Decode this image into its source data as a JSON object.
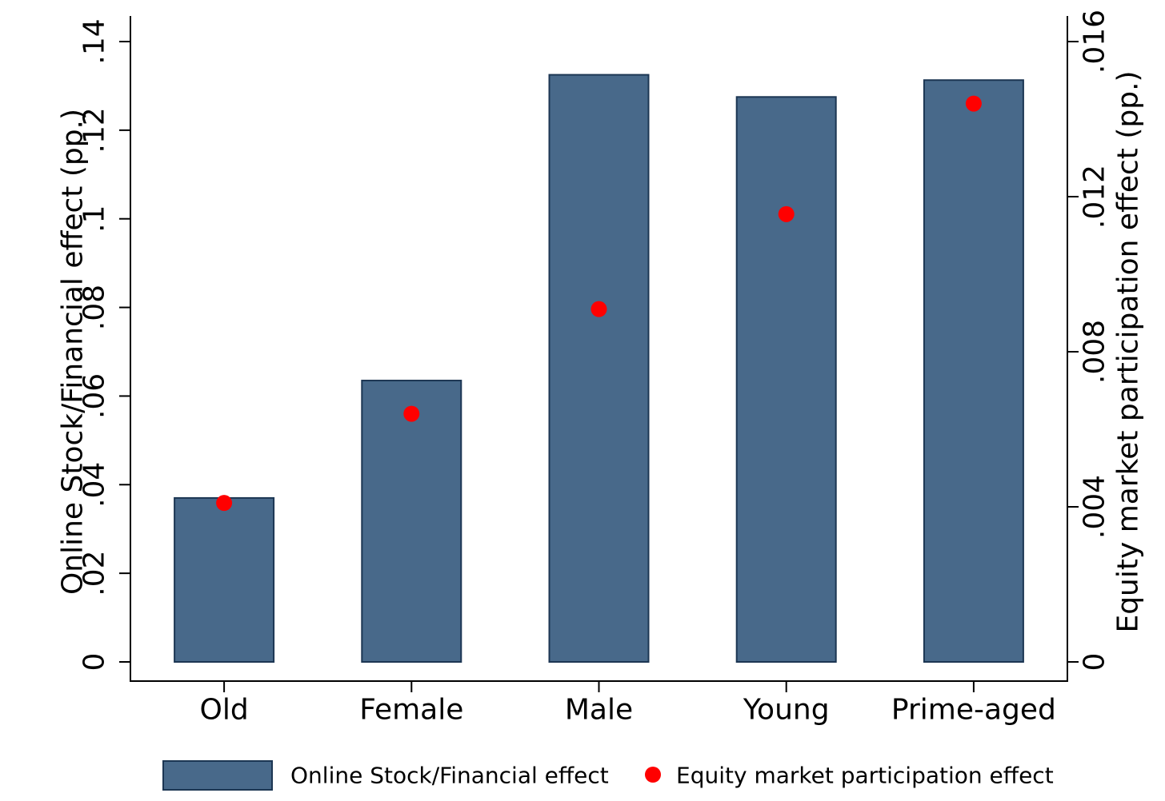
{
  "chart_data": {
    "type": "bar",
    "categories": [
      "Old",
      "Female",
      "Male",
      "Young",
      "Prime-aged"
    ],
    "series": [
      {
        "name": "Online Stock/Financial effect",
        "kind": "bar",
        "axis": "left",
        "color": "#48698A",
        "edge_color": "#1C3653",
        "values": [
          0.037,
          0.0635,
          0.1325,
          0.1275,
          0.1313
        ]
      },
      {
        "name": "Equity market participation effect",
        "kind": "scatter",
        "axis": "right",
        "color": "#FF0000",
        "values": [
          0.0041,
          0.0064,
          0.0091,
          0.01155,
          0.0144
        ]
      }
    ],
    "ylabel": "Online Stock/Financial effect (pp.)",
    "y2label": "Equity market participation effect (pp.)",
    "ylim": [
      0,
      0.14
    ],
    "y2lim": [
      0,
      0.016
    ],
    "yticks": [
      0,
      0.02,
      0.04,
      0.06,
      0.08,
      0.1,
      0.12,
      0.14
    ],
    "ytick_labels": [
      "0",
      ".02",
      ".04",
      ".06",
      ".08",
      ".1",
      ".12",
      ".14"
    ],
    "y2ticks": [
      0,
      0.004,
      0.008,
      0.012,
      0.016
    ],
    "y2tick_labels": [
      "0",
      ".004",
      ".008",
      ".012",
      ".016"
    ],
    "grid": false,
    "legend_position": "bottom"
  }
}
